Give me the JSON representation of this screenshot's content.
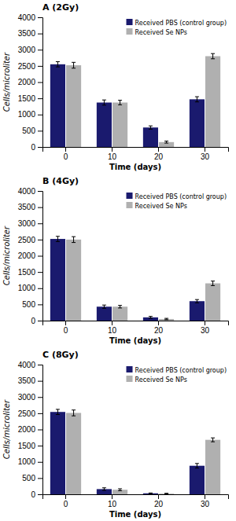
{
  "chart_data": [
    {
      "type": "bar",
      "title": "A (2Gy)",
      "categories": [
        "0",
        "10",
        "20",
        "30"
      ],
      "series": [
        {
          "name": "Received PBS (control group)",
          "color": "#1a1a6e",
          "values": [
            2550,
            1370,
            600,
            1470
          ],
          "errors": [
            80,
            80,
            50,
            80
          ]
        },
        {
          "name": "Received Se NPs",
          "color": "#b0b0b0",
          "values": [
            2520,
            1370,
            150,
            2800
          ],
          "errors": [
            90,
            70,
            30,
            80
          ]
        }
      ],
      "xlabel": "Time (days)",
      "ylabel": "Cells/microliter",
      "ylim": [
        0,
        4000
      ],
      "yticks": [
        0,
        500,
        1000,
        1500,
        2000,
        2500,
        3000,
        3500,
        4000
      ],
      "legend": "upper right"
    },
    {
      "type": "bar",
      "title": "B (4Gy)",
      "categories": [
        "0",
        "10",
        "20",
        "30"
      ],
      "series": [
        {
          "name": "Received PBS (control group)",
          "color": "#1a1a6e",
          "values": [
            2520,
            430,
            100,
            600
          ],
          "errors": [
            80,
            50,
            30,
            50
          ]
        },
        {
          "name": "Received Se NPs",
          "color": "#b0b0b0",
          "values": [
            2500,
            430,
            50,
            1150
          ],
          "errors": [
            90,
            40,
            20,
            70
          ]
        }
      ],
      "xlabel": "Time (days)",
      "ylabel": "Cells/microliter",
      "ylim": [
        0,
        4000
      ],
      "yticks": [
        0,
        500,
        1000,
        1500,
        2000,
        2500,
        3000,
        3500,
        4000
      ],
      "legend": "upper right"
    },
    {
      "type": "bar",
      "title": "C (8Gy)",
      "categories": [
        "0",
        "10",
        "20",
        "30"
      ],
      "series": [
        {
          "name": "Received PBS (control group)",
          "color": "#1a1a6e",
          "values": [
            2540,
            160,
            30,
            880
          ],
          "errors": [
            80,
            40,
            10,
            70
          ]
        },
        {
          "name": "Received Se NPs",
          "color": "#b0b0b0",
          "values": [
            2510,
            140,
            20,
            1680
          ],
          "errors": [
            90,
            30,
            10,
            60
          ]
        }
      ],
      "xlabel": "Time (days)",
      "ylabel": "Cells/microliter",
      "ylim": [
        0,
        4000
      ],
      "yticks": [
        0,
        500,
        1000,
        1500,
        2000,
        2500,
        3000,
        3500,
        4000
      ],
      "legend": "upper right"
    }
  ]
}
